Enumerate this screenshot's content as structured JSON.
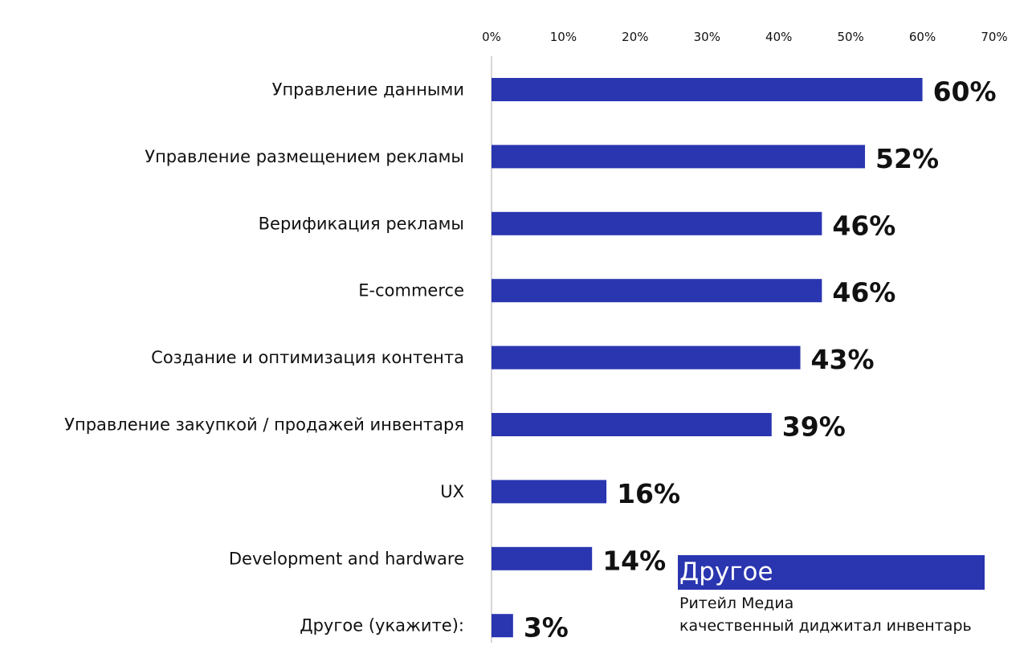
{
  "chart_data": {
    "type": "bar",
    "orientation": "horizontal",
    "categories": [
      "Управление данными",
      "Управление размещением рекламы",
      "Верификация рекламы",
      "E-commerce",
      "Создание и оптимизация контента",
      "Управление закупкой / продажей инвентаря",
      "UX",
      "Development and hardware",
      "Другое (укажите):"
    ],
    "values": [
      60,
      52,
      46,
      46,
      43,
      39,
      16,
      14,
      3
    ],
    "value_labels": [
      "60%",
      "52%",
      "46%",
      "46%",
      "43%",
      "39%",
      "16%",
      "14%",
      "3%"
    ],
    "xlim": [
      0,
      70
    ],
    "x_ticks": [
      0,
      10,
      20,
      30,
      40,
      50,
      60,
      70
    ],
    "x_tick_labels": [
      "0%",
      "10%",
      "20%",
      "30%",
      "40%",
      "50%",
      "60%",
      "70%"
    ],
    "axis_position": "top",
    "grid": false,
    "bar_color": "#2a35b0",
    "legend": {
      "placement": "bottom-right",
      "title": "Другое",
      "lines": [
        "Ритейл Медиа",
        "качественный диджитал инвентарь"
      ]
    }
  }
}
